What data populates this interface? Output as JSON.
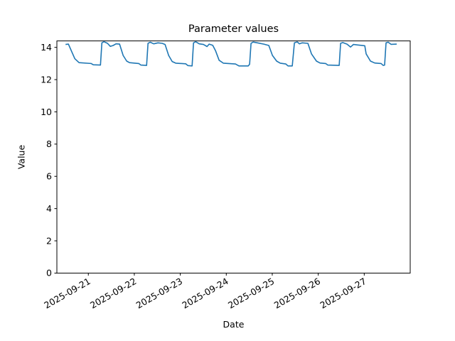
{
  "chart_data": {
    "type": "line",
    "title": "Parameter values",
    "xlabel": "Date",
    "ylabel": "Value",
    "grid": false,
    "legend_position": "none",
    "line_color": "#1f77b4",
    "axis_color": "#000000",
    "background_color": "#ffffff",
    "x_unit": "days since 2025-09-21 00:00",
    "x_range_days": [
      -0.684,
      7.0
    ],
    "ylim": [
      0,
      14.4
    ],
    "y_ticks": [
      0,
      2,
      4,
      6,
      8,
      10,
      12,
      14
    ],
    "x_tick_days": [
      0,
      1,
      2,
      3,
      4,
      5,
      6
    ],
    "x_tick_labels": [
      "2025-09-21",
      "2025-09-22",
      "2025-09-23",
      "2025-09-24",
      "2025-09-25",
      "2025-09-26",
      "2025-09-27"
    ],
    "series": [
      {
        "name": "Parameter values",
        "x": [
          -0.495,
          -0.433,
          -0.294,
          -0.201,
          0.062,
          0.108,
          0.263,
          0.294,
          0.34,
          0.417,
          0.479,
          0.541,
          0.603,
          0.68,
          0.757,
          0.834,
          0.896,
          1.097,
          1.144,
          1.267,
          1.298,
          1.344,
          1.422,
          1.514,
          1.607,
          1.669,
          1.746,
          1.824,
          1.901,
          2.117,
          2.164,
          2.256,
          2.287,
          2.334,
          2.411,
          2.504,
          2.581,
          2.627,
          2.705,
          2.766,
          2.844,
          2.936,
          3.199,
          3.276,
          3.477,
          3.508,
          3.539,
          3.585,
          3.678,
          3.817,
          3.925,
          4.003,
          4.095,
          4.173,
          4.296,
          4.343,
          4.435,
          4.482,
          4.544,
          4.59,
          4.652,
          4.775,
          4.853,
          4.961,
          5.038,
          5.162,
          5.208,
          5.455,
          5.486,
          5.533,
          5.625,
          5.703,
          5.764,
          5.857,
          6.012,
          6.042,
          6.135,
          6.228,
          6.367,
          6.413,
          6.444,
          6.475,
          6.521,
          6.583,
          6.707
        ],
        "y": [
          14.18,
          14.2,
          13.3,
          13.05,
          13.0,
          12.92,
          12.9,
          14.28,
          14.35,
          14.25,
          14.06,
          14.12,
          14.22,
          14.2,
          13.5,
          13.15,
          13.05,
          13.0,
          12.9,
          12.88,
          14.25,
          14.32,
          14.22,
          14.28,
          14.25,
          14.18,
          13.5,
          13.12,
          13.02,
          12.98,
          12.87,
          12.85,
          14.28,
          14.35,
          14.22,
          14.18,
          14.05,
          14.2,
          14.13,
          13.8,
          13.2,
          13.02,
          12.97,
          12.85,
          12.85,
          12.95,
          14.25,
          14.33,
          14.28,
          14.2,
          14.12,
          13.5,
          13.15,
          13.02,
          12.97,
          12.85,
          12.85,
          14.28,
          14.34,
          14.22,
          14.28,
          14.25,
          13.6,
          13.15,
          13.03,
          13.0,
          12.9,
          12.88,
          14.25,
          14.3,
          14.2,
          14.02,
          14.18,
          14.15,
          14.1,
          13.6,
          13.15,
          13.03,
          13.0,
          12.88,
          12.9,
          14.28,
          14.32,
          14.19,
          14.2
        ]
      }
    ]
  }
}
